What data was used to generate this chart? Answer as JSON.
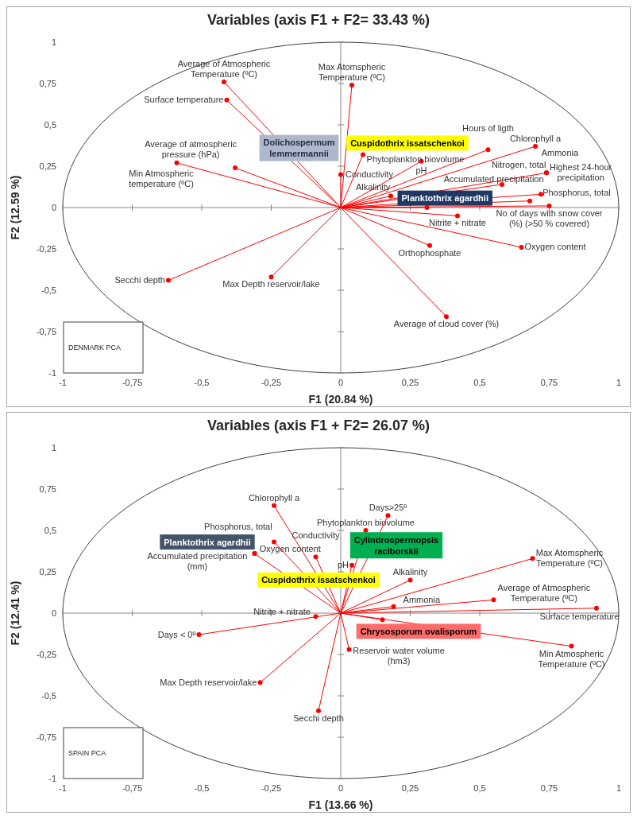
{
  "chart_data": [
    {
      "type": "line",
      "title": "Variables (axis F1 + F2= 33.43 %)",
      "xlabel": "F1 (20.84 %)",
      "ylabel": "F2 (12.59 %)",
      "xlim": [
        -1,
        1
      ],
      "ylim": [
        -1,
        1
      ],
      "xticks": [
        -1,
        {
          "value": -0.75,
          "label": "-0,75"
        },
        {
          "value": -0.5,
          "label": "-0,5"
        },
        {
          "value": -0.25,
          "label": "-0,25"
        },
        0,
        {
          "value": 0.25,
          "label": "0,25"
        },
        {
          "value": 0.5,
          "label": "0,5"
        },
        {
          "value": 0.75,
          "label": "0,75"
        },
        1
      ],
      "yticks": [
        -1,
        {
          "value": -0.75,
          "label": "-0,75"
        },
        {
          "value": -0.5,
          "label": "-0,5"
        },
        {
          "value": -0.25,
          "label": "-0,25"
        },
        0,
        {
          "value": 0.25,
          "label": "0,25"
        },
        {
          "value": 0.5,
          "label": "0,5"
        },
        {
          "value": 0.75,
          "label": "0,75"
        },
        1
      ],
      "series": [
        {
          "color": "#ff0000",
          "x": [
            0,
            -0.42
          ],
          "values": [
            0,
            0.76
          ]
        },
        {
          "color": "#ff0000",
          "x": [
            0,
            -0.41
          ],
          "values": [
            0,
            0.65
          ]
        },
        {
          "color": "#ff0000",
          "x": [
            0,
            0.04
          ],
          "values": [
            0,
            0.74
          ]
        },
        {
          "color": "#ff0000",
          "x": [
            0,
            -0.59
          ],
          "values": [
            0,
            0.27
          ]
        },
        {
          "color": "#ff0000",
          "x": [
            0,
            -0.38
          ],
          "values": [
            0,
            0.24
          ]
        },
        {
          "color": "#ff0000",
          "x": [
            0,
            0
          ],
          "values": [
            0,
            0.2
          ]
        },
        {
          "color": "#ff0000",
          "x": [
            0,
            0.08
          ],
          "values": [
            0,
            0.32
          ]
        },
        {
          "color": "#ff0000",
          "x": [
            0,
            0.29
          ],
          "values": [
            0,
            0.28
          ]
        },
        {
          "color": "#ff0000",
          "x": [
            0,
            0.18
          ],
          "values": [
            0,
            0.07
          ]
        },
        {
          "color": "#ff0000",
          "x": [
            0,
            0.53
          ],
          "values": [
            0,
            0.35
          ]
        },
        {
          "color": "#ff0000",
          "x": [
            0,
            0.7
          ],
          "values": [
            0,
            0.37
          ]
        },
        {
          "color": "#ff0000",
          "x": [
            0,
            0.74
          ],
          "values": [
            0,
            0.21
          ]
        },
        {
          "color": "#ff0000",
          "x": [
            0,
            0.58
          ],
          "values": [
            0,
            0.14
          ]
        },
        {
          "color": "#ff0000",
          "x": [
            0,
            0.72
          ],
          "values": [
            0,
            0.08
          ]
        },
        {
          "color": "#ff0000",
          "x": [
            0,
            0.68
          ],
          "values": [
            0,
            0.04
          ]
        },
        {
          "color": "#ff0000",
          "x": [
            0,
            0.75
          ],
          "values": [
            0,
            0.01
          ]
        },
        {
          "color": "#ff0000",
          "x": [
            0,
            0.42
          ],
          "values": [
            0,
            -0.05
          ]
        },
        {
          "color": "#ff0000",
          "x": [
            0,
            0.32
          ],
          "values": [
            0,
            -0.23
          ]
        },
        {
          "color": "#ff0000",
          "x": [
            0,
            0.65
          ],
          "values": [
            0,
            -0.24
          ]
        },
        {
          "color": "#ff0000",
          "x": [
            0,
            0.38
          ],
          "values": [
            0,
            -0.66
          ]
        },
        {
          "color": "#ff0000",
          "x": [
            0,
            -0.25
          ],
          "values": [
            0,
            -0.42
          ]
        },
        {
          "color": "#ff0000",
          "x": [
            0,
            -0.62
          ],
          "values": [
            0,
            -0.44
          ]
        },
        {
          "color": "#ff0000",
          "x": [
            0,
            0.31
          ],
          "values": [
            0,
            0
          ]
        },
        {
          "type": "scatter",
          "color": "#ff0000",
          "marker": "circle",
          "x": [
            -0.42,
            -0.41,
            0.04,
            -0.59,
            -0.38,
            0,
            0.08,
            0.29,
            0.18,
            0.53,
            0.7,
            0.74,
            0.74,
            0.58,
            0.72,
            0.68,
            0.75,
            0.42,
            0.32,
            0.65,
            0.38,
            -0.25,
            -0.62,
            0.31
          ],
          "values": [
            0.76,
            0.65,
            0.74,
            0.27,
            0.24,
            0.2,
            0.32,
            0.28,
            0.07,
            0.35,
            0.37,
            0.21,
            0.21,
            0.14,
            0.08,
            0.04,
            0.01,
            -0.05,
            -0.23,
            -0.24,
            -0.66,
            -0.42,
            -0.44,
            0
          ],
          "value_labels": [
            "Average of Atmospheric Temperature (ºC)",
            "Surface temperature",
            "Max Atomspheric Temperature (ºC)",
            "Min Atmospheric temperature (ºC)",
            "Average of atmospheric pressure (hPa)",
            "Conductivity",
            "Phytoplankton biovolume",
            "pH",
            "Alkalinity",
            "Hours of ligth",
            "Chlorophyll a",
            "Ammonia",
            "Highest 24-hour precipitation",
            "Nitrogen, total",
            "Accumulated precipitation",
            "Phosphorus, total",
            "No of days with snow cover (%) (>50 % covered)",
            "Nitrite + nitrate",
            "Orthophosphate",
            "Oxygen content",
            "Average of cloud cover (%)",
            "Max Depth reservoir/lake",
            "Secchi depth",
            null
          ]
        }
      ],
      "annotations": [
        "DENMARK PCA",
        "Dolichospermum lemmermannii",
        "Cuspidothrix issatschenkoi",
        "Planktothrix agardhii"
      ]
    },
    {
      "type": "line",
      "title": "Variables (axis F1 + F2= 26.07 %)",
      "xlabel": "F1 (13.66 %)",
      "ylabel": "F2 (12.41 %)",
      "xlim": [
        -1,
        1
      ],
      "ylim": [
        -1,
        1
      ],
      "xticks": [
        -1,
        {
          "value": -0.75,
          "label": "-0,75"
        },
        {
          "value": -0.5,
          "label": "-0,5"
        },
        {
          "value": -0.25,
          "label": "-0,25"
        },
        0,
        {
          "value": 0.25,
          "label": "0,25"
        },
        {
          "value": 0.5,
          "label": "0,5"
        },
        {
          "value": 0.75,
          "label": "0,75"
        },
        1
      ],
      "yticks": [
        -1,
        {
          "value": -0.75,
          "label": "-0,75"
        },
        {
          "value": -0.5,
          "label": "-0,5"
        },
        {
          "value": -0.25,
          "label": "-0,25"
        },
        0,
        {
          "value": 0.25,
          "label": "0,25"
        },
        {
          "value": 0.5,
          "label": "0,5"
        },
        {
          "value": 0.75,
          "label": "0,75"
        },
        1
      ],
      "series": [
        {
          "color": "#ff0000",
          "x": [
            0,
            -0.24,
            null,
            0,
            -0.31,
            null,
            0,
            -0.09,
            null,
            0,
            0.09,
            null,
            0,
            0.17,
            null,
            0,
            0.04,
            null,
            0,
            0.25,
            null,
            0,
            0.19,
            null,
            0,
            0.69,
            null,
            0,
            0.55,
            null,
            0,
            0.92,
            null,
            0,
            0.83,
            null,
            0,
            -0.51,
            null,
            0,
            0.03,
            null,
            0,
            -0.29,
            null,
            0,
            -0.08,
            null,
            0,
            0.15
          ],
          "values": [
            0,
            0.65,
            null,
            0,
            0.36,
            null,
            0,
            0.34,
            null,
            0,
            0.5,
            null,
            0,
            0.59,
            null,
            0,
            0.29,
            null,
            0,
            0.2,
            null,
            0,
            0.04,
            null,
            0,
            0.33,
            null,
            0,
            0.08,
            null,
            0,
            0.03,
            null,
            0,
            -0.2,
            null,
            0,
            -0.13,
            null,
            0,
            -0.22,
            null,
            0,
            -0.42,
            null,
            0,
            -0.59,
            null,
            0,
            -0.04
          ]
        },
        {
          "color": "#ff0000",
          "x": [
            0,
            -0.24
          ],
          "values": [
            0,
            0.43
          ]
        },
        {
          "type": "scatter",
          "color": "#ff0000",
          "marker": "circle",
          "x": [
            -0.24,
            -0.24,
            -0.31,
            -0.31,
            -0.09,
            0.09,
            0.17,
            0.04,
            0.25,
            0.19,
            0.69,
            0.55,
            0.92,
            0.83,
            -0.09,
            -0.51,
            0.03,
            -0.29,
            -0.08,
            0.15
          ],
          "values": [
            0.65,
            0.43,
            0.36,
            0.36,
            0.34,
            0.5,
            0.59,
            0.29,
            0.2,
            0.04,
            0.33,
            0.08,
            0.03,
            -0.2,
            -0.02,
            -0.13,
            -0.22,
            -0.42,
            -0.59,
            -0.04
          ],
          "value_labels": [
            "Chlorophyll a",
            "Phosphorus, total",
            "Oxygen content",
            "Accumulated precipitation (mm)",
            "Conductivity",
            "Phytoplankton biovolume",
            "Days>25º",
            "pH",
            "Alkalinity",
            "Ammonia",
            "Max Atomspheric Temperature (ºC)",
            "Average of Atmospheric Temperature (ºC)",
            "Surface temperature",
            "Min Atmospheric Temperature (ºC)",
            "Nitrite + nitrate",
            "Days < 0º",
            "Reservoir water volume (hm3)",
            "Max Depth reservoir/lake",
            "Secchi depth",
            null
          ]
        }
      ],
      "annotations": [
        "SPAIN PCA",
        "Planktothrix agardhii",
        "Cuspidothrix issatschenkoi",
        "Cylindrospermopsis raciborskii",
        "Chrysosporum ovalisporum"
      ]
    }
  ]
}
